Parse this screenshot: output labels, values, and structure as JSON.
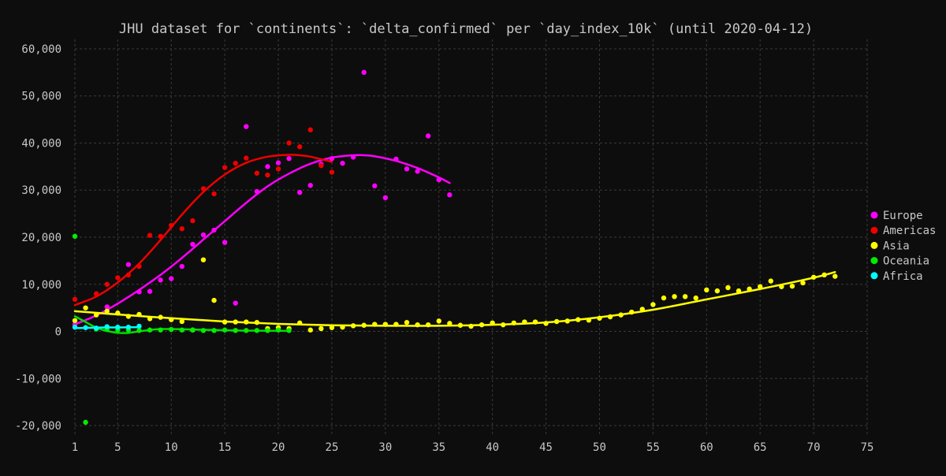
{
  "chart_data": {
    "type": "scatter",
    "title": "JHU dataset for `continents`: `delta_confirmed` per `day_index_10k` (until 2020-04-12)",
    "xlabel": "",
    "ylabel": "",
    "xlim": [
      1,
      75
    ],
    "ylim": [
      -22000,
      62000
    ],
    "x_ticks": [
      1,
      5,
      10,
      15,
      20,
      25,
      30,
      35,
      40,
      45,
      50,
      55,
      60,
      65,
      70,
      75
    ],
    "y_ticks": [
      -20000,
      -10000,
      0,
      10000,
      20000,
      30000,
      40000,
      50000,
      60000
    ],
    "y_tick_labels": [
      "-20,000",
      "-10,000",
      "0",
      "10,000",
      "20,000",
      "30,000",
      "40,000",
      "50,000",
      "60,000"
    ],
    "grid": true,
    "legend_position": "right",
    "background_color": "#0d0d0d",
    "text_color": "#c8c8c8",
    "grid_color": "#3a3a3a",
    "series": [
      {
        "name": "Europe",
        "color": "#ff00ff",
        "x": [
          1,
          4,
          6,
          7,
          8,
          9,
          10,
          11,
          12,
          13,
          14,
          15,
          16,
          17,
          18,
          19,
          20,
          21,
          22,
          23,
          24,
          25,
          26,
          27,
          28,
          29,
          30,
          31,
          32,
          33,
          34,
          35,
          36
        ],
        "y": [
          1500,
          5200,
          14200,
          8400,
          8500,
          10900,
          11200,
          13800,
          18500,
          20500,
          21500,
          18900,
          6000,
          43500,
          29700,
          35000,
          35800,
          36700,
          29500,
          31000,
          35500,
          36700,
          35700,
          37000,
          55000,
          30900,
          28400,
          36600,
          34500,
          34000,
          41500,
          32200,
          29000
        ],
        "trend_x": [
          1,
          3,
          5,
          7,
          9,
          11,
          13,
          15,
          17,
          19,
          21,
          23,
          25,
          27,
          28,
          29,
          31,
          33,
          35,
          36
        ],
        "trend_y": [
          1500,
          3400,
          5900,
          8800,
          12000,
          15600,
          19500,
          23400,
          27300,
          30800,
          33500,
          35600,
          36900,
          37400,
          37400,
          37200,
          36200,
          34700,
          32700,
          31500
        ]
      },
      {
        "name": "Americas",
        "color": "#ee0000",
        "x": [
          1,
          3,
          4,
          5,
          6,
          7,
          8,
          9,
          10,
          11,
          12,
          13,
          14,
          15,
          16,
          17,
          18,
          19,
          20,
          21,
          22,
          23,
          24,
          25
        ],
        "y": [
          6800,
          8000,
          10000,
          11400,
          12000,
          13800,
          20400,
          20200,
          22500,
          21800,
          23500,
          30300,
          29200,
          34800,
          35700,
          36800,
          33600,
          33200,
          34500,
          40000,
          39200,
          42800,
          35200,
          33800
        ],
        "trend_x": [
          1,
          3,
          5,
          7,
          9,
          11,
          13,
          15,
          17,
          19,
          21,
          22,
          23,
          25
        ],
        "trend_y": [
          5600,
          7400,
          10400,
          14400,
          19400,
          24800,
          29600,
          33300,
          35800,
          37100,
          37500,
          37400,
          37100,
          36000
        ]
      },
      {
        "name": "Asia",
        "color": "#ffff00",
        "x": [
          1,
          2,
          3,
          4,
          5,
          6,
          7,
          8,
          9,
          10,
          11,
          12,
          13,
          14,
          15,
          16,
          17,
          18,
          19,
          20,
          21,
          22,
          23,
          24,
          25,
          26,
          27,
          28,
          29,
          30,
          31,
          32,
          33,
          34,
          35,
          36,
          37,
          38,
          39,
          40,
          41,
          42,
          43,
          44,
          45,
          46,
          47,
          48,
          49,
          50,
          51,
          52,
          53,
          54,
          55,
          56,
          57,
          58,
          59,
          60,
          61,
          62,
          63,
          64,
          65,
          66,
          67,
          68,
          69,
          70,
          71,
          72
        ],
        "y": [
          2300,
          5000,
          3500,
          4300,
          3900,
          3200,
          3600,
          2700,
          3000,
          2500,
          2100,
          300,
          15200,
          6600,
          2000,
          2000,
          2000,
          1900,
          600,
          800,
          600,
          1800,
          300,
          600,
          800,
          900,
          1200,
          1300,
          1500,
          1500,
          1500,
          1900,
          1400,
          1400,
          2200,
          1700,
          1300,
          1100,
          1400,
          1800,
          1400,
          1800,
          2000,
          2000,
          1700,
          2100,
          2200,
          2500,
          2400,
          2800,
          3100,
          3500,
          4100,
          4700,
          5700,
          7100,
          7400,
          7400,
          7100,
          8800,
          8600,
          9300,
          8600,
          9000,
          9500,
          10700,
          9500,
          9600,
          10300,
          11500,
          12000,
          11700
        ],
        "trend_x": [
          1,
          5,
          10,
          15,
          20,
          25,
          30,
          35,
          40,
          45,
          50,
          55,
          60,
          65,
          70,
          72
        ],
        "trend_y": [
          4300,
          3600,
          2800,
          2100,
          1600,
          1300,
          1200,
          1200,
          1400,
          1900,
          3000,
          4600,
          6800,
          9000,
          11400,
          12600
        ]
      },
      {
        "name": "Oceania",
        "color": "#00ee00",
        "x": [
          1,
          2,
          3,
          4,
          5,
          6,
          7,
          8,
          9,
          10,
          11,
          12,
          13,
          14,
          15,
          16,
          17,
          18,
          19,
          20,
          21
        ],
        "y": [
          20200,
          -19300,
          500,
          400,
          300,
          300,
          200,
          300,
          300,
          400,
          300,
          300,
          200,
          200,
          300,
          200,
          200,
          200,
          200,
          300,
          200
        ],
        "trend_x": [
          1,
          2,
          3,
          4,
          5,
          6,
          7,
          8,
          9,
          10,
          12,
          14,
          16,
          18,
          21
        ],
        "trend_y": [
          3200,
          2000,
          800,
          100,
          -300,
          -300,
          0,
          300,
          500,
          500,
          400,
          300,
          200,
          150,
          100
        ],
        "trend_color": "#00dd00"
      },
      {
        "name": "Africa",
        "color": "#00ffff",
        "x": [
          1,
          2,
          3,
          4,
          5,
          6,
          7
        ],
        "y": [
          900,
          800,
          700,
          1000,
          900,
          900,
          1100
        ],
        "trend_x": [
          1,
          3,
          5,
          7
        ],
        "trend_y": [
          700,
          800,
          850,
          900
        ]
      }
    ]
  }
}
